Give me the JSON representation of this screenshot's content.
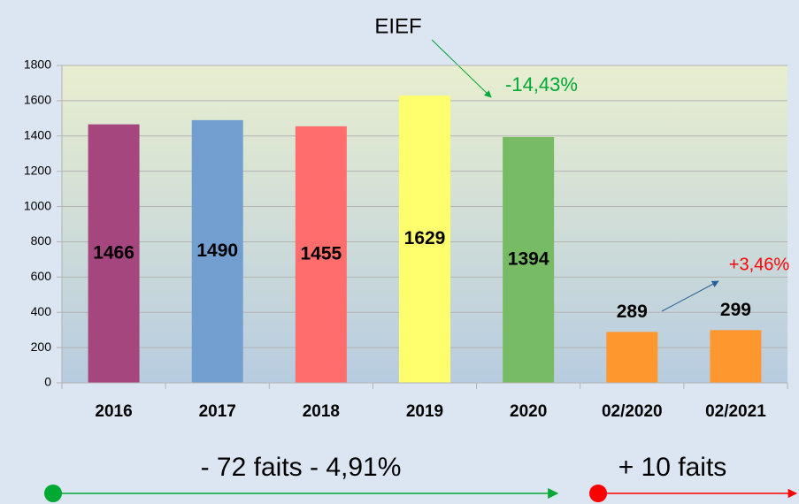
{
  "chart_data": {
    "type": "bar",
    "categories": [
      "2016",
      "2017",
      "2018",
      "2019",
      "2020",
      "02/2020",
      "02/2021"
    ],
    "values": [
      1466,
      1490,
      1455,
      1629,
      1394,
      289,
      299
    ],
    "colors": [
      "#a5467f",
      "#729fcf",
      "#ff6d6d",
      "#ffff6d",
      "#77bc65",
      "#ff972f",
      "#ff972f"
    ],
    "ylim": [
      0,
      1800
    ],
    "yticks": [
      0,
      200,
      400,
      600,
      800,
      1000,
      1200,
      1400,
      1600,
      1800
    ],
    "grid": true,
    "annotations": [
      "EIEF",
      "-14,43%",
      "+3,46%",
      "- 72 faits  - 4,91%",
      "+ 10 faits"
    ]
  }
}
